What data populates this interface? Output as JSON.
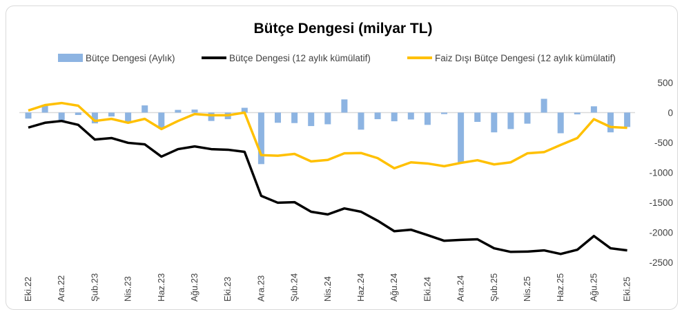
{
  "chart_data": {
    "type": "bar+line",
    "title": "Bütçe Dengesi (milyar TL)",
    "legend_position": "top",
    "grid": false,
    "ylim": [
      -2500,
      500
    ],
    "yticks": [
      500,
      0,
      -500,
      -1000,
      -1500,
      -2000,
      -2500
    ],
    "categories": [
      "Eki.22",
      "Kas.22",
      "Ara.22",
      "Oca.23",
      "Şub.23",
      "Mar.23",
      "Nis.23",
      "May.23",
      "Haz.23",
      "Tem.23",
      "Ağu.23",
      "Eyl.23",
      "Eki.23",
      "Kas.23",
      "Ara.23",
      "Oca.24",
      "Şub.24",
      "Mar.24",
      "Nis.24",
      "May.24",
      "Haz.24",
      "Tem.24",
      "Ağu.24",
      "Eyl.24",
      "Eki.24",
      "Kas.24",
      "Ara.24",
      "Oca.25",
      "Şub.25",
      "Mar.25",
      "Nis.25",
      "May.25",
      "Haz.25",
      "Tem.25",
      "Ağu.25",
      "Eyl.25",
      "Eki.25"
    ],
    "xtick_labels": [
      "Eki.22",
      "Ara.22",
      "Şub.23",
      "Nis.23",
      "Haz.23",
      "Ağu.23",
      "Eki.23",
      "Ara.23",
      "Şub.24",
      "Nis.24",
      "Haz.24",
      "Ağu.24",
      "Eki.24",
      "Ara.24",
      "Şub.25",
      "Nis.25",
      "Haz.25",
      "Ağu.25",
      "Eki.25"
    ],
    "series": [
      {
        "name": "Bütçe Dengesi (Aylık)",
        "type": "bar",
        "color": "#8db4e2",
        "values": [
          -100,
          110,
          -130,
          -40,
          -180,
          -65,
          -150,
          120,
          -270,
          45,
          50,
          -140,
          -110,
          80,
          -860,
          -170,
          -175,
          -225,
          -195,
          220,
          -285,
          -110,
          -145,
          -115,
          -205,
          -25,
          -840,
          -155,
          -330,
          -275,
          -185,
          230,
          -345,
          -30,
          105,
          -330,
          -240
        ]
      },
      {
        "name": "Bütçe Dengesi (12 aylık kümülatif)",
        "type": "line",
        "color": "#000000",
        "values": [
          -250,
          -170,
          -140,
          -205,
          -450,
          -425,
          -505,
          -530,
          -735,
          -610,
          -565,
          -610,
          -620,
          -655,
          -1390,
          -1505,
          -1495,
          -1655,
          -1700,
          -1600,
          -1655,
          -1805,
          -1980,
          -1955,
          -2045,
          -2140,
          -2125,
          -2115,
          -2265,
          -2325,
          -2320,
          -2300,
          -2360,
          -2290,
          -2060,
          -2265,
          -2300
        ]
      },
      {
        "name": "Faiz Dışı Bütçe Dengesi (12 aylık kümülatif)",
        "type": "line",
        "color": "#ffc000",
        "values": [
          35,
          125,
          160,
          115,
          -140,
          -105,
          -170,
          -105,
          -275,
          -140,
          -25,
          -45,
          -45,
          0,
          -710,
          -720,
          -690,
          -815,
          -790,
          -680,
          -675,
          -760,
          -930,
          -830,
          -850,
          -895,
          -840,
          -795,
          -865,
          -830,
          -680,
          -660,
          -540,
          -425,
          -110,
          -240,
          -255
        ]
      }
    ]
  }
}
